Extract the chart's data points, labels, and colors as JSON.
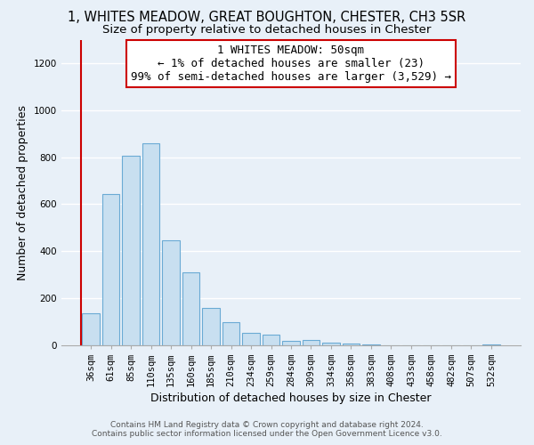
{
  "title": "1, WHITES MEADOW, GREAT BOUGHTON, CHESTER, CH3 5SR",
  "subtitle": "Size of property relative to detached houses in Chester",
  "xlabel": "Distribution of detached houses by size in Chester",
  "ylabel": "Number of detached properties",
  "categories": [
    "36sqm",
    "61sqm",
    "85sqm",
    "110sqm",
    "135sqm",
    "160sqm",
    "185sqm",
    "210sqm",
    "234sqm",
    "259sqm",
    "284sqm",
    "309sqm",
    "334sqm",
    "358sqm",
    "383sqm",
    "408sqm",
    "433sqm",
    "458sqm",
    "482sqm",
    "507sqm",
    "532sqm"
  ],
  "values": [
    135,
    645,
    805,
    860,
    445,
    308,
    158,
    95,
    52,
    42,
    18,
    22,
    10,
    5,
    2,
    0,
    0,
    0,
    0,
    0,
    3
  ],
  "bar_color": "#c8dff0",
  "bar_edge_color": "#6aaad4",
  "vline_color": "#cc0000",
  "vline_x": -0.5,
  "annotation_line1": "1 WHITES MEADOW: 50sqm",
  "annotation_line2": "← 1% of detached houses are smaller (23)",
  "annotation_line3": "99% of semi-detached houses are larger (3,529) →",
  "annotation_box_color": "#ffffff",
  "annotation_box_edge_color": "#cc0000",
  "ylim": [
    0,
    1300
  ],
  "yticks": [
    0,
    200,
    400,
    600,
    800,
    1000,
    1200
  ],
  "footer_line1": "Contains HM Land Registry data © Crown copyright and database right 2024.",
  "footer_line2": "Contains public sector information licensed under the Open Government Licence v3.0.",
  "background_color": "#e8f0f8",
  "grid_color": "#ffffff",
  "title_fontsize": 10.5,
  "subtitle_fontsize": 9.5,
  "axis_label_fontsize": 9,
  "tick_fontsize": 7.5,
  "annotation_fontsize": 9,
  "footer_fontsize": 6.5
}
